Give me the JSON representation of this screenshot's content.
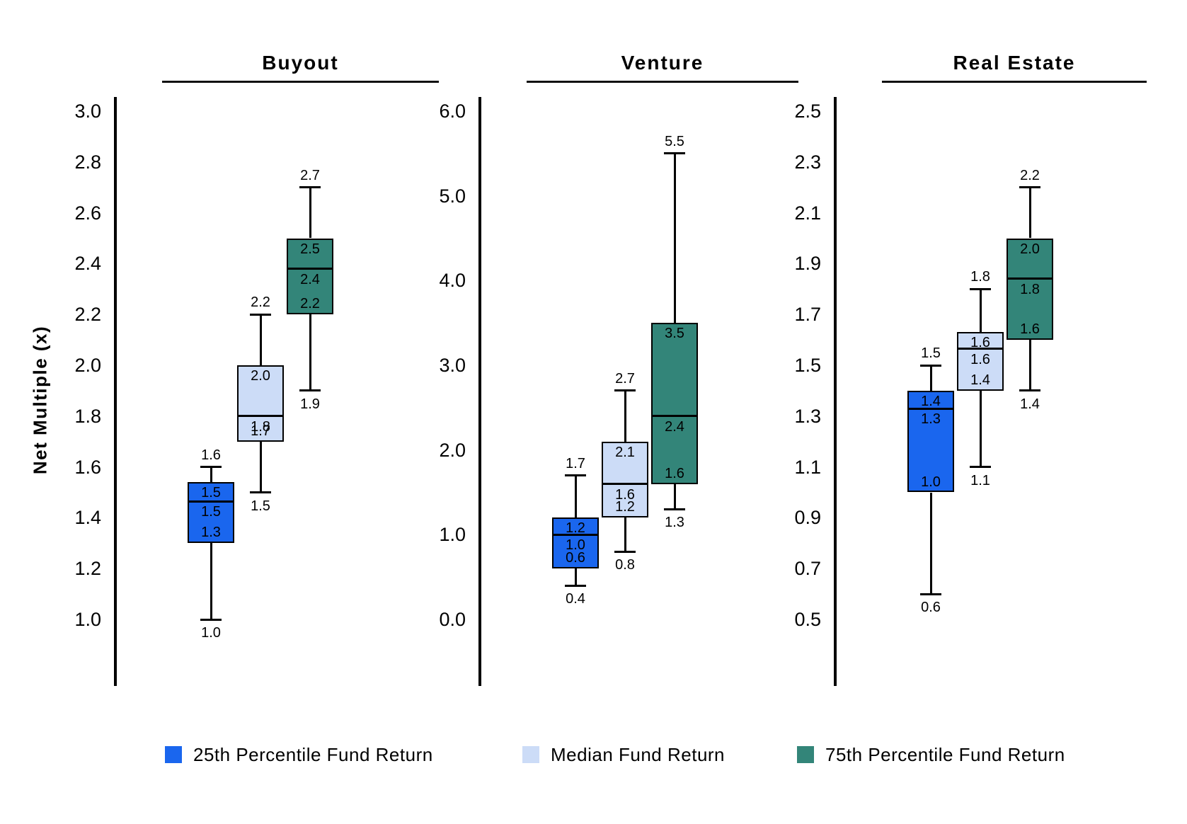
{
  "chart_data": {
    "type": "boxplot",
    "ylabel": "Net Multiple (x)",
    "legend_position": "bottom",
    "grid": false,
    "series_colors": {
      "p25": "#1a66ee",
      "median": "#ccdcf7",
      "p75": "#338579"
    },
    "legend": [
      {
        "label": "25th Percentile Fund Return",
        "color": "#1a66ee"
      },
      {
        "label": "Median Fund Return",
        "color": "#ccdcf7"
      },
      {
        "label": "75th Percentile Fund Return",
        "color": "#338579"
      }
    ],
    "panels": [
      {
        "title": "Buyout",
        "ylim": [
          1.0,
          3.0
        ],
        "yticks": [
          "3.0",
          "2.8",
          "2.6",
          "2.4",
          "2.2",
          "2.0",
          "1.8",
          "1.6",
          "1.4",
          "1.2",
          "1.0"
        ],
        "boxes": [
          {
            "series": "25th Percentile Fund Return",
            "whisker_high": 1.6,
            "q3": 1.5,
            "median": 1.5,
            "q1": 1.3,
            "whisker_low": 1.0,
            "labels": {
              "whisker_high": "1.6",
              "q3": "1.5",
              "median": "1.5",
              "q1": "1.3",
              "whisker_low": "1.0"
            },
            "draw": {
              "q3": 1.54,
              "median": 1.465
            }
          },
          {
            "series": "Median Fund Return",
            "whisker_high": 2.2,
            "q3": 2.0,
            "median": 1.8,
            "q1": 1.7,
            "whisker_low": 1.5,
            "labels": {
              "whisker_high": "2.2",
              "q3": "2.0",
              "median": "1.8",
              "q1": "1.7",
              "whisker_low": "1.5"
            }
          },
          {
            "series": "75th Percentile Fund Return",
            "whisker_high": 2.7,
            "q3": 2.5,
            "median": 2.4,
            "q1": 2.2,
            "whisker_low": 1.9,
            "labels": {
              "whisker_high": "2.7",
              "q3": "2.5",
              "median": "2.4",
              "q1": "2.2",
              "whisker_low": "1.9"
            },
            "draw": {
              "median": 2.38
            }
          }
        ]
      },
      {
        "title": "Venture",
        "ylim": [
          0.0,
          6.0
        ],
        "yticks": [
          "6.0",
          "5.0",
          "4.0",
          "3.0",
          "2.0",
          "1.0",
          "0.0"
        ],
        "boxes": [
          {
            "series": "25th Percentile Fund Return",
            "whisker_high": 1.7,
            "q3": 1.2,
            "median": 1.0,
            "q1": 0.6,
            "whisker_low": 0.4,
            "labels": {
              "whisker_high": "1.7",
              "q3": "1.2",
              "median": "1.0",
              "q1": "0.6",
              "whisker_low": "0.4"
            }
          },
          {
            "series": "Median Fund Return",
            "whisker_high": 2.7,
            "q3": 2.1,
            "median": 1.6,
            "q1": 1.2,
            "whisker_low": 0.8,
            "labels": {
              "whisker_high": "2.7",
              "q3": "2.1",
              "median": "1.6",
              "q1": "1.2",
              "whisker_low": "0.8"
            }
          },
          {
            "series": "75th Percentile Fund Return",
            "whisker_high": 5.5,
            "q3": 3.5,
            "median": 2.4,
            "q1": 1.6,
            "whisker_low": 1.3,
            "labels": {
              "whisker_high": "5.5",
              "q3": "3.5",
              "median": "2.4",
              "q1": "1.6",
              "whisker_low": "1.3"
            }
          }
        ]
      },
      {
        "title": "Real Estate",
        "ylim": [
          0.5,
          2.5
        ],
        "yticks": [
          "2.5",
          "2.3",
          "2.1",
          "1.9",
          "1.7",
          "1.5",
          "1.3",
          "1.1",
          "0.9",
          "0.7",
          "0.5"
        ],
        "boxes": [
          {
            "series": "25th Percentile Fund Return",
            "whisker_high": 1.5,
            "q3": 1.4,
            "median": 1.3,
            "q1": 1.0,
            "whisker_low": 0.6,
            "labels": {
              "whisker_high": "1.5",
              "q3": "1.4",
              "median": "1.3",
              "q1": "1.0",
              "whisker_low": "0.6"
            },
            "draw": {
              "median": 1.33
            }
          },
          {
            "series": "Median Fund Return",
            "whisker_high": 1.8,
            "q3": 1.6,
            "median": 1.6,
            "q1": 1.4,
            "whisker_low": 1.1,
            "labels": {
              "whisker_high": "1.8",
              "q3": "1.6",
              "median": "1.6",
              "q1": "1.4",
              "whisker_low": "1.1"
            },
            "draw": {
              "q3": 1.63,
              "median": 1.565
            }
          },
          {
            "series": "75th Percentile Fund Return",
            "whisker_high": 2.2,
            "q3": 2.0,
            "median": 1.8,
            "q1": 1.6,
            "whisker_low": 1.4,
            "labels": {
              "whisker_high": "2.2",
              "q3": "2.0",
              "median": "1.8",
              "q1": "1.6",
              "whisker_low": "1.4"
            },
            "draw": {
              "median": 1.84
            }
          }
        ]
      }
    ]
  }
}
